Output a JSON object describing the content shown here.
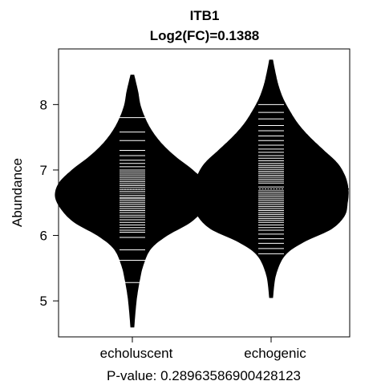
{
  "chart_data": {
    "type": "beanplot",
    "title": "ITB1",
    "subtitle": "Log2(FC)=0.1388",
    "ylabel": "Abundance",
    "footer": "P-value: 0.28963586900428123",
    "categories": [
      "echoluscent",
      "echogenic"
    ],
    "ylim": [
      4.45,
      8.85
    ],
    "yticks": [
      5,
      6,
      7,
      8
    ],
    "overall_mean": 6.71,
    "grid": false,
    "legend": "none",
    "series": [
      {
        "category": "echoluscent",
        "mean": 6.63,
        "density": [
          [
            4.6,
            0.02
          ],
          [
            5.0,
            0.05
          ],
          [
            5.3,
            0.09
          ],
          [
            5.55,
            0.14
          ],
          [
            5.8,
            0.24
          ],
          [
            6.0,
            0.45
          ],
          [
            6.2,
            0.75
          ],
          [
            6.4,
            0.92
          ],
          [
            6.6,
            1.0
          ],
          [
            6.8,
            0.95
          ],
          [
            7.0,
            0.78
          ],
          [
            7.2,
            0.56
          ],
          [
            7.4,
            0.38
          ],
          [
            7.6,
            0.25
          ],
          [
            7.8,
            0.16
          ],
          [
            8.0,
            0.1
          ],
          [
            8.2,
            0.07
          ],
          [
            8.45,
            0.02
          ]
        ],
        "points": [
          5.28,
          5.62,
          5.78,
          5.97,
          6.05,
          6.08,
          6.12,
          6.16,
          6.2,
          6.24,
          6.28,
          6.31,
          6.35,
          6.38,
          6.41,
          6.44,
          6.47,
          6.5,
          6.53,
          6.56,
          6.58,
          6.61,
          6.64,
          6.67,
          6.7,
          6.73,
          6.76,
          6.79,
          6.82,
          6.85,
          6.88,
          6.91,
          6.94,
          6.97,
          7.0,
          7.05,
          7.1,
          7.15,
          7.22,
          7.3,
          7.45,
          7.58,
          7.8
        ]
      },
      {
        "category": "echogenic",
        "mean": 6.77,
        "density": [
          [
            5.05,
            0.02
          ],
          [
            5.4,
            0.06
          ],
          [
            5.7,
            0.18
          ],
          [
            5.9,
            0.42
          ],
          [
            6.1,
            0.78
          ],
          [
            6.3,
            0.95
          ],
          [
            6.5,
            0.99
          ],
          [
            6.7,
            1.0
          ],
          [
            6.9,
            0.96
          ],
          [
            7.1,
            0.86
          ],
          [
            7.3,
            0.68
          ],
          [
            7.5,
            0.5
          ],
          [
            7.7,
            0.35
          ],
          [
            7.9,
            0.24
          ],
          [
            8.1,
            0.15
          ],
          [
            8.3,
            0.09
          ],
          [
            8.5,
            0.05
          ],
          [
            8.68,
            0.02
          ]
        ],
        "points": [
          5.72,
          5.8,
          5.88,
          5.95,
          6.02,
          6.08,
          6.12,
          6.16,
          6.2,
          6.23,
          6.26,
          6.29,
          6.32,
          6.35,
          6.38,
          6.41,
          6.44,
          6.47,
          6.5,
          6.53,
          6.56,
          6.59,
          6.62,
          6.65,
          6.68,
          6.71,
          6.74,
          6.77,
          6.8,
          6.83,
          6.86,
          6.89,
          6.92,
          6.95,
          6.98,
          7.01,
          7.04,
          7.07,
          7.1,
          7.14,
          7.18,
          7.22,
          7.27,
          7.32,
          7.38,
          7.45,
          7.52,
          7.6,
          7.68,
          7.78,
          7.88,
          8.0
        ]
      }
    ]
  }
}
